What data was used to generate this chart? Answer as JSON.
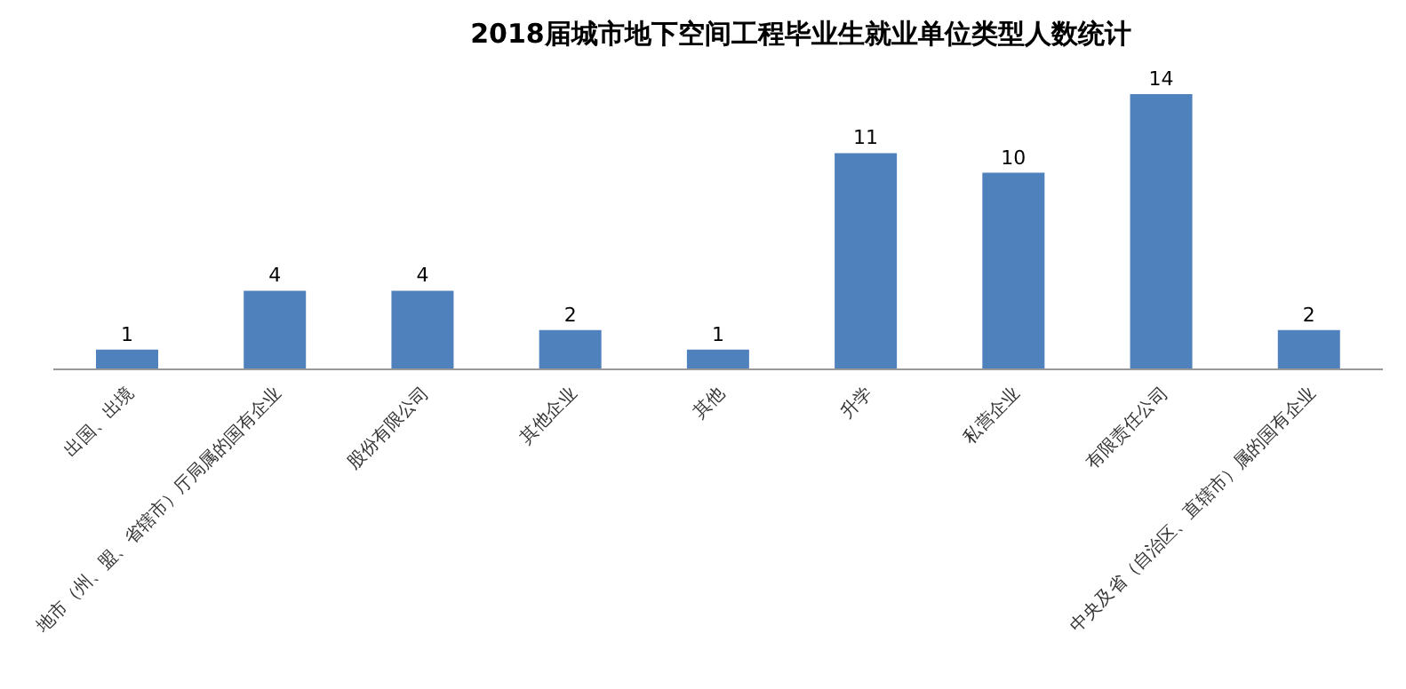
{
  "chart_data": {
    "type": "bar",
    "title": "2018届城市地下空间工程毕业生就业单位类型人数统计",
    "categories": [
      "出国、出境",
      "地市（州、盟、省辖市）厅局属的国有企业",
      "股份有限公司",
      "其他企业",
      "其他",
      "升学",
      "私营企业",
      "有限责任公司",
      "中央及省（自治区、直辖市）属的国有企业"
    ],
    "values": [
      1,
      4,
      4,
      2,
      1,
      11,
      10,
      14,
      2
    ],
    "color": "#4f81bd",
    "data_labels": true,
    "grid": false,
    "legend": false
  }
}
